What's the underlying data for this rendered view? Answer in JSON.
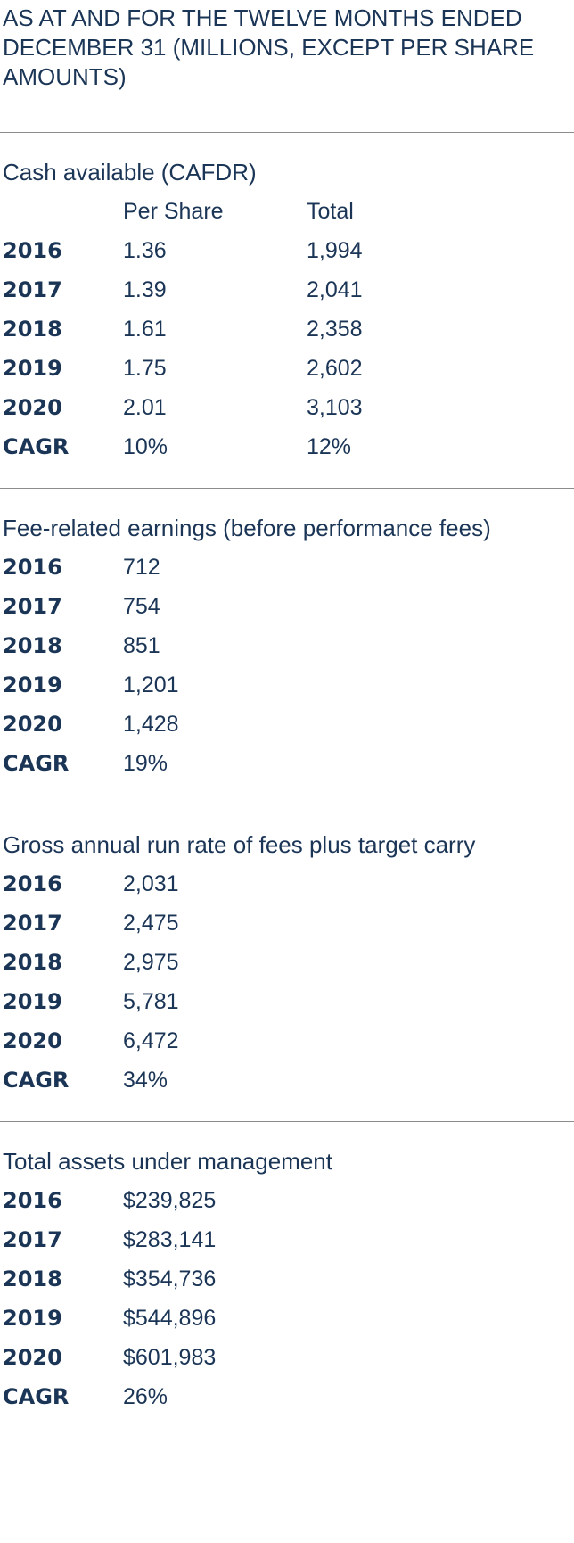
{
  "header": {
    "title": "AS AT AND FOR THE TWELVE MONTHS ENDED DECEMBER 31 (MILLIONS, EXCEPT PER SHARE AMOUNTS)"
  },
  "sections": [
    {
      "title": "Cash available (CAFDR)",
      "columns": [
        "Per Share",
        "Total"
      ],
      "rows": [
        [
          "2016",
          "1.36",
          "1,994"
        ],
        [
          "2017",
          "1.39",
          "2,041"
        ],
        [
          "2018",
          "1.61",
          "2,358"
        ],
        [
          "2019",
          "1.75",
          "2,602"
        ],
        [
          "2020",
          "2.01",
          "3,103"
        ],
        [
          "CAGR",
          "10%",
          "12%"
        ]
      ]
    },
    {
      "title": "Fee-related earnings (before performance fees)",
      "rows": [
        [
          "2016",
          "712"
        ],
        [
          "2017",
          "754"
        ],
        [
          "2018",
          "851"
        ],
        [
          "2019",
          "1,201"
        ],
        [
          "2020",
          "1,428"
        ],
        [
          "CAGR",
          "19%"
        ]
      ]
    },
    {
      "title": "Gross annual run rate of fees plus target carry",
      "rows": [
        [
          "2016",
          "2,031"
        ],
        [
          "2017",
          "2,475"
        ],
        [
          "2018",
          "2,975"
        ],
        [
          "2019",
          "5,781"
        ],
        [
          "2020",
          "6,472"
        ],
        [
          "CAGR",
          "34%"
        ]
      ]
    },
    {
      "title": "Total assets under management",
      "rows": [
        [
          "2016",
          "$239,825"
        ],
        [
          "2017",
          "$283,141"
        ],
        [
          "2018",
          "$354,736"
        ],
        [
          "2019",
          "$544,896"
        ],
        [
          "2020",
          "$601,983"
        ],
        [
          "CAGR",
          "26%"
        ]
      ]
    }
  ]
}
